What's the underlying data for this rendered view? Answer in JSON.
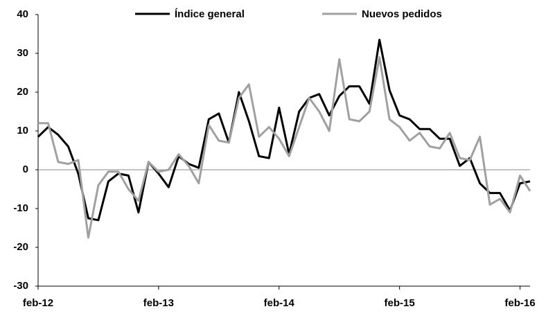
{
  "chart_data": {
    "type": "line",
    "categories": [
      "feb-12",
      null,
      null,
      null,
      null,
      null,
      null,
      null,
      null,
      null,
      null,
      null,
      "feb-13",
      null,
      null,
      null,
      null,
      null,
      null,
      null,
      null,
      null,
      null,
      null,
      "feb-14",
      null,
      null,
      null,
      null,
      null,
      null,
      null,
      null,
      null,
      null,
      null,
      "feb-15",
      null,
      null,
      null,
      null,
      null,
      null,
      null,
      null,
      null,
      null,
      null,
      "feb-16",
      null
    ],
    "series": [
      {
        "name": "Índice general",
        "color": "#000000",
        "values": [
          8.5,
          11,
          9,
          6,
          -1,
          -12.5,
          -13,
          -3,
          -1,
          -1.5,
          -11,
          2,
          -1,
          -4.5,
          3.5,
          1.5,
          0.5,
          13,
          14.5,
          7,
          20,
          12.5,
          3.5,
          3,
          16,
          4,
          15,
          18.5,
          19.5,
          14,
          19,
          21.5,
          21.5,
          17,
          33.5,
          20.5,
          14,
          13,
          10.5,
          10.5,
          8,
          8,
          1,
          3,
          -3.5,
          -6,
          -6,
          -10.5,
          -3.5,
          -3
        ]
      },
      {
        "name": "Nuevos pedidos",
        "color": "#a0a0a0",
        "values": [
          12,
          12,
          2,
          1.5,
          2.5,
          -17.5,
          -4,
          -0.5,
          -0.5,
          -5,
          -8,
          2,
          -0.5,
          0,
          4,
          1,
          -3.5,
          11.5,
          7.5,
          7,
          18.5,
          22,
          8.5,
          11,
          8,
          3.5,
          11,
          18.5,
          15,
          10,
          28.5,
          13,
          12.5,
          15,
          29,
          13,
          11,
          7.5,
          9.5,
          6,
          5.5,
          9.5,
          3,
          2.5,
          8.5,
          -9,
          -7.5,
          -11,
          -1.5,
          -5.5
        ]
      }
    ],
    "ylim": [
      -30,
      40
    ],
    "yticks": [
      {
        "value": -30,
        "label": "-30"
      },
      {
        "value": -20,
        "label": "-20"
      },
      {
        "value": -10,
        "label": "-10"
      },
      0,
      10,
      20,
      30,
      40
    ]
  }
}
